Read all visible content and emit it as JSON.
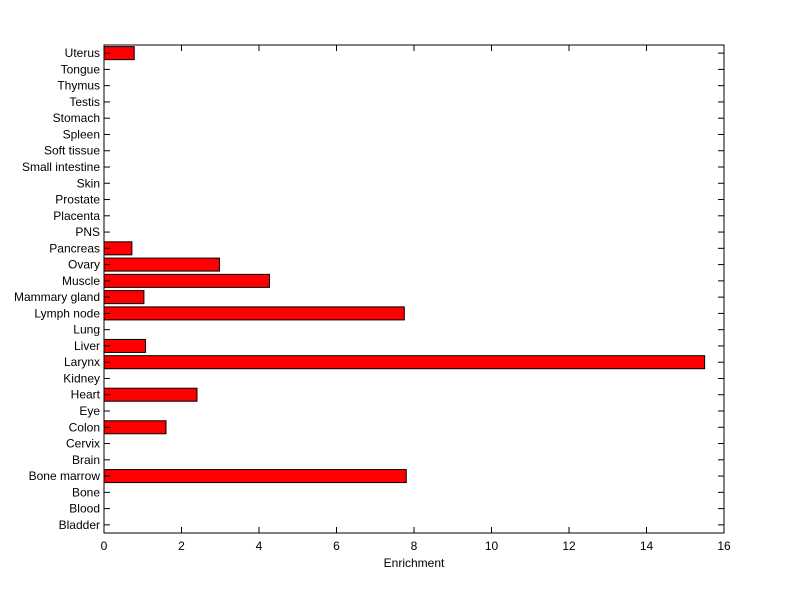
{
  "chart_data": {
    "type": "bar",
    "orientation": "horizontal",
    "categories": [
      "Bladder",
      "Blood",
      "Bone",
      "Bone marrow",
      "Brain",
      "Cervix",
      "Colon",
      "Eye",
      "Heart",
      "Kidney",
      "Larynx",
      "Liver",
      "Lung",
      "Lymph node",
      "Mammary gland",
      "Muscle",
      "Ovary",
      "Pancreas",
      "PNS",
      "Placenta",
      "Prostate",
      "Skin",
      "Small intestine",
      "Soft tissue",
      "Spleen",
      "Stomach",
      "Testis",
      "Thymus",
      "Tongue",
      "Uterus"
    ],
    "values": [
      0,
      0,
      0,
      7.8,
      0,
      0,
      1.6,
      0,
      2.4,
      0,
      15.5,
      1.07,
      0,
      7.75,
      1.03,
      4.27,
      2.98,
      0.72,
      0,
      0,
      0,
      0,
      0,
      0,
      0,
      0,
      0,
      0,
      0,
      0.78
    ],
    "title": "",
    "xlabel": "Enrichment",
    "ylabel": "",
    "xlim": [
      0,
      16
    ],
    "xticks": [
      0,
      2,
      4,
      6,
      8,
      10,
      12,
      14,
      16
    ],
    "grid": false,
    "bar_color": "#ff0000",
    "bar_edge_color": "#000000"
  }
}
